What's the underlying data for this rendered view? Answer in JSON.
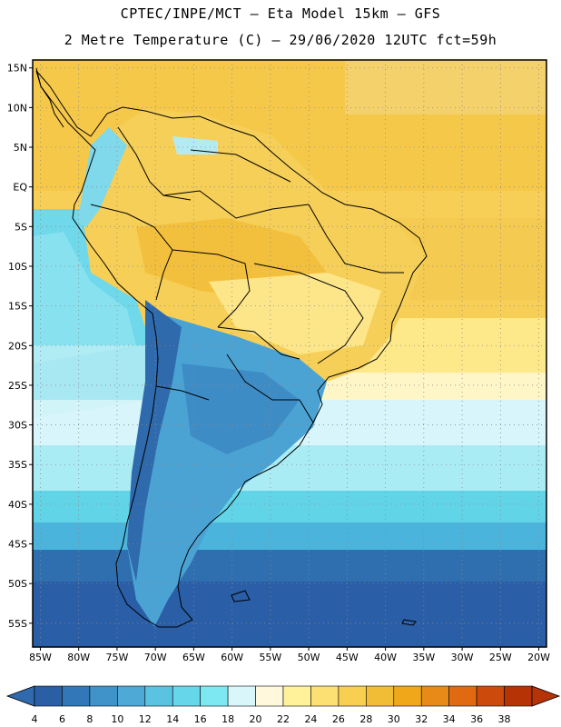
{
  "header": {
    "line1": "CPTEC/INPE/MCT –  Eta Model 15km – GFS",
    "line2": "2 Metre Temperature (C) – 29/06/2020 12UTC fct=59h"
  },
  "map": {
    "lon_range": [
      -86,
      -19
    ],
    "lat_range": [
      -58,
      16
    ],
    "lat_ticks": [
      "15N",
      "10N",
      "5N",
      "EQ",
      "5S",
      "10S",
      "15S",
      "20S",
      "25S",
      "30S",
      "35S",
      "40S",
      "45S",
      "50S",
      "55S"
    ],
    "lat_values": [
      15,
      10,
      5,
      0,
      -5,
      -10,
      -15,
      -20,
      -25,
      -30,
      -35,
      -40,
      -45,
      -50,
      -55
    ],
    "lon_ticks": [
      "85W",
      "80W",
      "75W",
      "70W",
      "65W",
      "60W",
      "55W",
      "50W",
      "45W",
      "40W",
      "35W",
      "30W",
      "25W",
      "20W"
    ],
    "lon_values": [
      -85,
      -80,
      -75,
      -70,
      -65,
      -60,
      -55,
      -50,
      -45,
      -40,
      -35,
      -30,
      -25,
      -20
    ]
  },
  "colorbar": {
    "labels": [
      "4",
      "6",
      "8",
      "10",
      "12",
      "14",
      "16",
      "18",
      "20",
      "22",
      "24",
      "26",
      "28",
      "30",
      "32",
      "34",
      "36",
      "38"
    ],
    "colors": [
      "#2a5fa5",
      "#3278b8",
      "#3f93c8",
      "#4ea9d6",
      "#5bc3e2",
      "#66d6ea",
      "#7ee8f2",
      "#d9f7fb",
      "#fff8dc",
      "#fff29a",
      "#fde073",
      "#f9cf52",
      "#f2bd36",
      "#f0a81a",
      "#e88a18",
      "#e06a12",
      "#cc4a0b",
      "#b63306"
    ],
    "low_color": "#2f6aad",
    "high_color": "#b63306"
  }
}
